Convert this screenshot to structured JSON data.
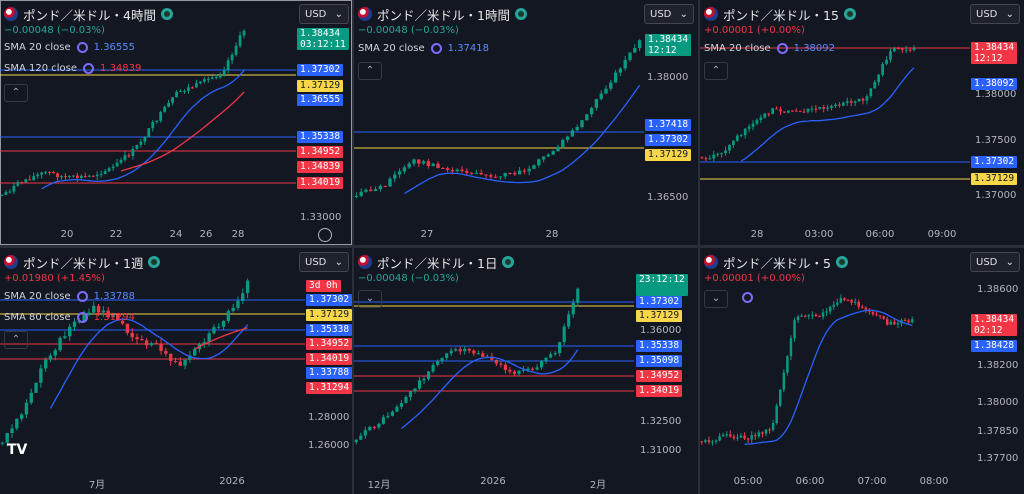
{
  "panels": [
    {
      "symbol": "ポンド／米ドル・4時間",
      "change": "−0.00048 (−0.03%)",
      "change_color": "#26a69a",
      "currency": "USD",
      "sma_rows": [
        {
          "label": "SMA 20 close",
          "value": "1.36555",
          "value_color": "blue"
        },
        {
          "label": "SMA 120 close",
          "value": "1.34839",
          "value_color": "red"
        }
      ],
      "price_tags": [
        {
          "text": "1.38434",
          "text2": "03:12:11",
          "color": "green"
        },
        {
          "text": "1.37302",
          "color": "blue"
        },
        {
          "text": "1.37129",
          "color": "yellow"
        },
        {
          "text": "1.36555",
          "color": "blue"
        },
        {
          "text": "1.35338",
          "color": "blue"
        },
        {
          "text": "1.34952",
          "color": "red"
        },
        {
          "text": "1.34839",
          "color": "red"
        },
        {
          "text": "1.34019",
          "color": "red"
        }
      ],
      "axis_prices": [
        "1.33000"
      ],
      "x_labels": [
        "20",
        "22",
        "24",
        "26",
        "28"
      ]
    },
    {
      "symbol": "ポンド／米ドル・1時間",
      "change": "−0.00048 (−0.03%)",
      "change_color": "#26a69a",
      "currency": "USD",
      "sma_rows": [
        {
          "label": "SMA 20 close",
          "value": "1.37418",
          "value_color": "blue"
        }
      ],
      "price_tags": [
        {
          "text": "1.38434",
          "text2": "12:12",
          "color": "green"
        },
        {
          "text": "1.37418",
          "color": "blue"
        },
        {
          "text": "1.37302",
          "color": "blue"
        },
        {
          "text": "1.37129",
          "color": "yellow"
        }
      ],
      "axis_prices": [
        "1.38000",
        "1.36500"
      ],
      "x_labels": [
        "27",
        "28"
      ]
    },
    {
      "symbol": "ポンド／米ドル・15",
      "change": "+0.00001 (+0.00%)",
      "change_color": "#f23645",
      "currency": "USD",
      "sma_rows": [
        {
          "label": "SMA 20 close",
          "value": "1.38092",
          "value_color": "blue"
        }
      ],
      "price_tags": [
        {
          "text": "1.38434",
          "text2": "12:12",
          "color": "red"
        },
        {
          "text": "1.38092",
          "color": "blue"
        },
        {
          "text": "1.37302",
          "color": "blue"
        },
        {
          "text": "1.37129",
          "color": "yellow"
        }
      ],
      "axis_prices": [
        "1.38000",
        "1.37500",
        "1.37000"
      ],
      "x_labels": [
        "28",
        "03:00",
        "06:00",
        "09:00"
      ]
    },
    {
      "symbol": "ポンド／米ドル・1週",
      "change": "+0.01980 (+1.45%)",
      "change_color": "#f23645",
      "currency": "USD",
      "sma_rows": [
        {
          "label": "SMA 20 close",
          "value": "1.33788",
          "value_color": "blue"
        },
        {
          "label": "SMA 80 close",
          "value": "1.31294",
          "value_color": "red"
        }
      ],
      "price_tags": [
        {
          "text": "3d 0h",
          "color": "red"
        },
        {
          "text": "1.37302",
          "color": "blue"
        },
        {
          "text": "1.37129",
          "color": "yellow"
        },
        {
          "text": "1.35338",
          "color": "blue"
        },
        {
          "text": "1.34952",
          "color": "red"
        },
        {
          "text": "1.34019",
          "color": "red"
        },
        {
          "text": "1.33788",
          "color": "blue"
        },
        {
          "text": "1.31294",
          "color": "red"
        }
      ],
      "axis_prices": [
        "1.28000",
        "1.26000"
      ],
      "x_labels": [
        "7月",
        "2026"
      ],
      "logo": "TV"
    },
    {
      "symbol": "ポンド／米ドル・1日",
      "change": "−0.00048 (−0.03%)",
      "change_color": "#26a69a",
      "currency": "USD",
      "sma_rows": [],
      "price_tags": [
        {
          "text": "23:12:12",
          "color": "green"
        },
        {
          "text": "1.37302",
          "color": "blue"
        },
        {
          "text": "1.37129",
          "color": "yellow"
        },
        {
          "text": "1.35338",
          "color": "blue"
        },
        {
          "text": "1.35098",
          "color": "blue"
        },
        {
          "text": "1.34952",
          "color": "red"
        },
        {
          "text": "1.34019",
          "color": "red"
        }
      ],
      "axis_prices": [
        "1.36000",
        "1.32500",
        "1.31000"
      ],
      "x_labels": [
        "12月",
        "2026",
        "2月"
      ]
    },
    {
      "symbol": "ポンド／米ドル・5",
      "change": "+0.00001 (+0.00%)",
      "change_color": "#f23645",
      "currency": "USD",
      "sma_rows": [],
      "price_tags": [
        {
          "text": "1.38434",
          "text2": "02:12",
          "color": "red"
        },
        {
          "text": "1.38428",
          "color": "blue"
        }
      ],
      "axis_prices": [
        "1.38600",
        "1.38200",
        "1.38000",
        "1.37850",
        "1.37700"
      ],
      "x_labels": [
        "05:00",
        "06:00",
        "07:00",
        "08:00"
      ]
    }
  ]
}
